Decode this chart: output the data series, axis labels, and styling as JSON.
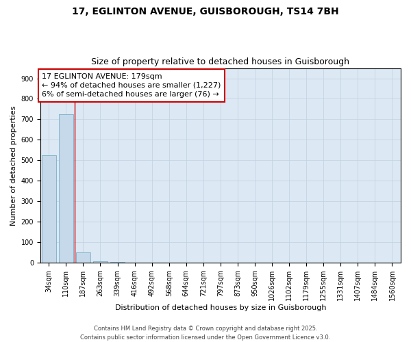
{
  "title1": "17, EGLINTON AVENUE, GUISBOROUGH, TS14 7BH",
  "title2": "Size of property relative to detached houses in Guisborough",
  "xlabel": "Distribution of detached houses by size in Guisborough",
  "ylabel": "Number of detached properties",
  "categories": [
    "34sqm",
    "110sqm",
    "187sqm",
    "263sqm",
    "339sqm",
    "416sqm",
    "492sqm",
    "568sqm",
    "644sqm",
    "721sqm",
    "797sqm",
    "873sqm",
    "950sqm",
    "1026sqm",
    "1102sqm",
    "1179sqm",
    "1255sqm",
    "1331sqm",
    "1407sqm",
    "1484sqm",
    "1560sqm"
  ],
  "values": [
    525,
    725,
    50,
    8,
    5,
    1,
    0,
    0,
    0,
    0,
    0,
    0,
    0,
    0,
    0,
    0,
    0,
    0,
    0,
    0,
    0
  ],
  "bar_color": "#c5d9ea",
  "bar_edge_color": "#7aaec8",
  "grid_color": "#c0d0e0",
  "bg_color": "#dce8f3",
  "annotation_text": "17 EGLINTON AVENUE: 179sqm\n← 94% of detached houses are smaller (1,227)\n6% of semi-detached houses are larger (76) →",
  "annotation_box_color": "#ffffff",
  "annotation_box_edge": "#cc0000",
  "vline_color": "#cc0000",
  "vline_x": 1.5,
  "ylim": [
    0,
    950
  ],
  "yticks": [
    0,
    100,
    200,
    300,
    400,
    500,
    600,
    700,
    800,
    900
  ],
  "footnote": "Contains HM Land Registry data © Crown copyright and database right 2025.\nContains public sector information licensed under the Open Government Licence v3.0.",
  "title_fontsize": 10,
  "subtitle_fontsize": 9,
  "annotation_fontsize": 8,
  "footnote_fontsize": 6,
  "xlabel_fontsize": 8,
  "ylabel_fontsize": 8,
  "tick_fontsize": 7
}
